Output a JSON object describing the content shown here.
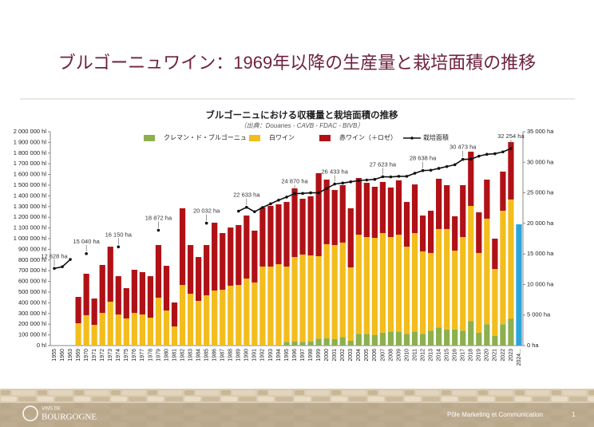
{
  "slide": {
    "title": "ブルゴーニュワイン：1969年以降の生産量と栽培面積の推移",
    "footer": {
      "logo_top": "VINS DE",
      "logo_main": "BOURGOGNE",
      "department": "Pôle Marketing et Communication",
      "page": "1"
    }
  },
  "chart_data": {
    "type": "bar",
    "stacked": true,
    "grid": false,
    "title": "ブルゴーニュにおける収穫量と栽培面積の推移",
    "subtitle": "（出典：Douanes - CAVB - FDAC - BIVB）",
    "categories": [
      "1955",
      "1960",
      "1963",
      "1969",
      "1970",
      "1971",
      "1972",
      "1973",
      "1974",
      "1975",
      "1976",
      "1977",
      "1978",
      "1979",
      "1980",
      "1981",
      "1982",
      "1983",
      "1984",
      "1985",
      "1986",
      "1987",
      "1988",
      "1989",
      "1990",
      "1991",
      "1992",
      "1993",
      "1994",
      "1995",
      "1996",
      "1997",
      "1998",
      "1999",
      "2000",
      "2001",
      "2002",
      "2003",
      "2004",
      "2005",
      "2006",
      "2007",
      "2008",
      "2009",
      "2010",
      "2011",
      "2012",
      "2013",
      "2014",
      "2015",
      "2016",
      "2017",
      "2018",
      "2019",
      "2020",
      "2021",
      "2022",
      "2023",
      "2024..."
    ],
    "ylim": [
      0,
      2000000
    ],
    "yticks": [
      {
        "value": 0,
        "label": "0 hl"
      },
      {
        "value": 100000,
        "label": "100 000 hl"
      },
      {
        "value": 200000,
        "label": "200 000 hl"
      },
      {
        "value": 300000,
        "label": "300 000 hl"
      },
      {
        "value": 400000,
        "label": "400 000 hl"
      },
      {
        "value": 500000,
        "label": "500 000 hl"
      },
      {
        "value": 600000,
        "label": "600 000 hl"
      },
      {
        "value": 700000,
        "label": "700 000 hl"
      },
      {
        "value": 800000,
        "label": "800 000 hl"
      },
      {
        "value": 900000,
        "label": "900 000 hl"
      },
      {
        "value": 1000000,
        "label": "1 000 000 hl"
      },
      {
        "value": 1100000,
        "label": "1 100 000 hl"
      },
      {
        "value": 1200000,
        "label": "1 200 000 hl"
      },
      {
        "value": 1300000,
        "label": "1 300 000 hl"
      },
      {
        "value": 1400000,
        "label": "1 400 000 hl"
      },
      {
        "value": 1500000,
        "label": "1 500 000 hl"
      },
      {
        "value": 1600000,
        "label": "1 600 000 hl"
      },
      {
        "value": 1700000,
        "label": "1 700 000 hl"
      },
      {
        "value": 1800000,
        "label": "1 800 000 hl"
      },
      {
        "value": 1900000,
        "label": "1 900 000 hl"
      },
      {
        "value": 2000000,
        "label": "2 000 000 hl"
      }
    ],
    "y2lim": [
      0,
      35000
    ],
    "y2ticks": [
      {
        "value": 0,
        "label": "0 ha"
      },
      {
        "value": 5000,
        "label": "5 000 ha"
      },
      {
        "value": 10000,
        "label": "10 000 ha"
      },
      {
        "value": 15000,
        "label": "15 000 ha"
      },
      {
        "value": 20000,
        "label": "20 000 ha"
      },
      {
        "value": 25000,
        "label": "25 000 ha"
      },
      {
        "value": 30000,
        "label": "30 000 ha"
      },
      {
        "value": 35000,
        "label": "35 000 ha"
      }
    ],
    "series": [
      {
        "name": "クレマン・ド・ブルゴーニュ",
        "color": "#8db04f",
        "values": [
          null,
          null,
          null,
          null,
          null,
          null,
          null,
          null,
          null,
          null,
          null,
          null,
          null,
          null,
          null,
          null,
          null,
          null,
          null,
          null,
          null,
          null,
          null,
          null,
          null,
          null,
          null,
          null,
          null,
          35000,
          40000,
          35000,
          40000,
          65000,
          70000,
          60000,
          80000,
          45000,
          110000,
          110000,
          100000,
          120000,
          130000,
          130000,
          110000,
          130000,
          110000,
          140000,
          170000,
          150000,
          150000,
          140000,
          230000,
          120000,
          200000,
          90000,
          200000,
          250000,
          null
        ]
      },
      {
        "name": "白ワイン",
        "color": "#f2bd1d",
        "values": [
          null,
          null,
          null,
          209000,
          284000,
          194000,
          306000,
          410000,
          291000,
          254000,
          306000,
          291000,
          261000,
          448000,
          328000,
          179000,
          567000,
          485000,
          418000,
          470000,
          515000,
          522000,
          560000,
          567000,
          627000,
          590000,
          739000,
          739000,
          761000,
          704000,
          788000,
          816000,
          803000,
          771000,
          878000,
          880000,
          883000,
          686000,
          927000,
          905000,
          907000,
          932000,
          885000,
          907000,
          815000,
          922000,
          771000,
          726000,
          920000,
          940000,
          738000,
          875000,
          1076000,
          746000,
          987000,
          626000,
          1061000,
          1116000,
          null
        ]
      },
      {
        "name": "赤ワイン（＋ロゼ）",
        "color": "#b01116",
        "values": [
          null,
          null,
          null,
          246000,
          388000,
          246000,
          448000,
          515000,
          358000,
          283000,
          403000,
          396000,
          388000,
          492000,
          418000,
          224000,
          717000,
          455000,
          410000,
          470000,
          634000,
          530000,
          544000,
          560000,
          589000,
          485000,
          552000,
          567000,
          560000,
          604000,
          642000,
          522000,
          553000,
          776000,
          604000,
          515000,
          537000,
          553000,
          530000,
          507000,
          478000,
          478000,
          463000,
          508000,
          418000,
          455000,
          335000,
          395000,
          470000,
          410000,
          321000,
          485000,
          507000,
          380000,
          365000,
          284000,
          366000,
          537000,
          null
        ]
      },
      {
        "color": "#2aa6df",
        "values": [
          null,
          null,
          null,
          null,
          null,
          null,
          null,
          null,
          null,
          null,
          null,
          null,
          null,
          null,
          null,
          null,
          null,
          null,
          null,
          null,
          null,
          null,
          null,
          null,
          null,
          null,
          null,
          null,
          null,
          null,
          null,
          null,
          null,
          null,
          null,
          null,
          null,
          null,
          null,
          null,
          null,
          null,
          null,
          null,
          null,
          null,
          null,
          null,
          null,
          null,
          null,
          null,
          null,
          null,
          null,
          null,
          null,
          null,
          1134000
        ]
      },
      {
        "name": "栽培面積",
        "color": "#111111",
        "axis": "y2",
        "type": "line",
        "values": [
          12628,
          12900,
          14100,
          null,
          15040,
          null,
          null,
          null,
          16150,
          null,
          null,
          null,
          null,
          18872,
          null,
          null,
          null,
          null,
          null,
          20032,
          null,
          null,
          null,
          22000,
          22633,
          21900,
          22600,
          23200,
          23800,
          24300,
          24870,
          24900,
          25000,
          25000,
          25700,
          26433,
          26600,
          26800,
          27000,
          27100,
          27200,
          27623,
          27600,
          27700,
          27700,
          28200,
          28638,
          28700,
          29000,
          29300,
          29600,
          30473,
          30500,
          31000,
          31300,
          31400,
          31700,
          32254,
          null
        ],
        "value_labels": [
          "12 628 ha",
          null,
          null,
          null,
          "15 040 ha",
          null,
          null,
          null,
          "16 150 ha",
          null,
          null,
          null,
          null,
          "18 872 ha",
          null,
          null,
          null,
          null,
          null,
          "20 032 ha",
          null,
          null,
          null,
          null,
          "22 633 ha",
          null,
          null,
          null,
          null,
          null,
          "24 870 ha",
          null,
          null,
          null,
          null,
          "26 433 ha",
          null,
          null,
          null,
          null,
          null,
          "27 623 ha",
          null,
          null,
          null,
          null,
          "28 638 ha",
          null,
          null,
          null,
          null,
          "30 473 ha",
          null,
          null,
          null,
          null,
          null,
          "32 254 ha",
          null
        ]
      }
    ]
  }
}
